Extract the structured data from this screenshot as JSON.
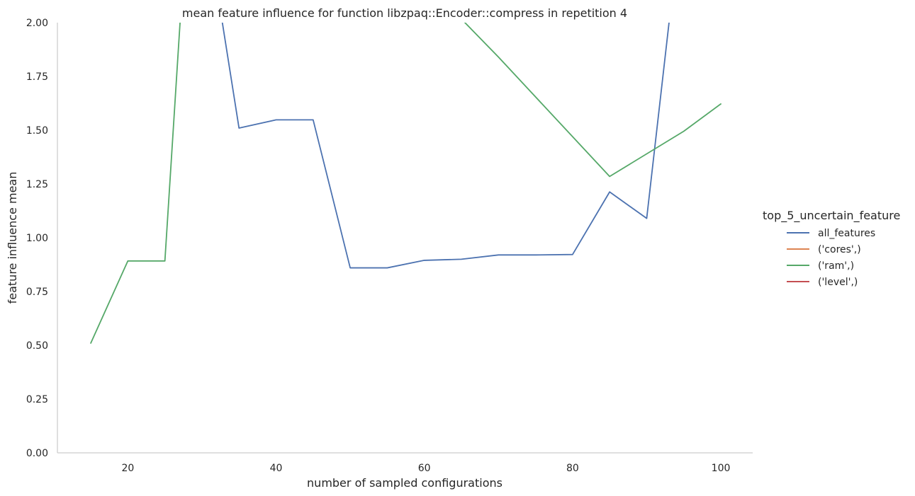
{
  "chart_data": {
    "type": "line",
    "title": "mean feature influence for function libzpaq::Encoder::compress in repetition 4",
    "xlabel": "number of sampled configurations",
    "ylabel": "feature influence mean",
    "xlim": [
      10.5,
      104.3
    ],
    "ylim": [
      0,
      2.0
    ],
    "xticks": [
      "20",
      "40",
      "60",
      "80",
      "100"
    ],
    "yticks": [
      "0.00",
      "0.25",
      "0.50",
      "0.75",
      "1.00",
      "1.25",
      "1.50",
      "1.75",
      "2.00"
    ],
    "grid": false,
    "legend": {
      "title": "top_5_uncertain_feature",
      "placement": "right"
    },
    "series": [
      {
        "name": "all_features",
        "color": "#4c72b0",
        "points": [
          [
            30,
            2.6
          ],
          [
            35,
            1.51
          ],
          [
            40,
            1.548
          ],
          [
            45,
            1.548
          ],
          [
            50,
            0.86
          ],
          [
            55,
            0.86
          ],
          [
            60,
            0.895
          ],
          [
            65,
            0.9
          ],
          [
            70,
            0.92
          ],
          [
            75,
            0.92
          ],
          [
            80,
            0.922
          ],
          [
            85,
            1.213
          ],
          [
            90,
            1.09
          ],
          [
            95,
            2.6
          ]
        ]
      },
      {
        "name": "('cores',)",
        "color": "#dd8452",
        "points": []
      },
      {
        "name": "('ram',)",
        "color": "#55a868",
        "points": [
          [
            15,
            0.51
          ],
          [
            20,
            0.892
          ],
          [
            25,
            0.892
          ],
          [
            30,
            3.6
          ],
          [
            60,
            2.35
          ],
          [
            65,
            2.017
          ],
          [
            70,
            1.84
          ],
          [
            85,
            1.285
          ],
          [
            95,
            1.495
          ],
          [
            100,
            1.622
          ]
        ]
      },
      {
        "name": "('level',)",
        "color": "#c44e52",
        "points": []
      }
    ]
  }
}
